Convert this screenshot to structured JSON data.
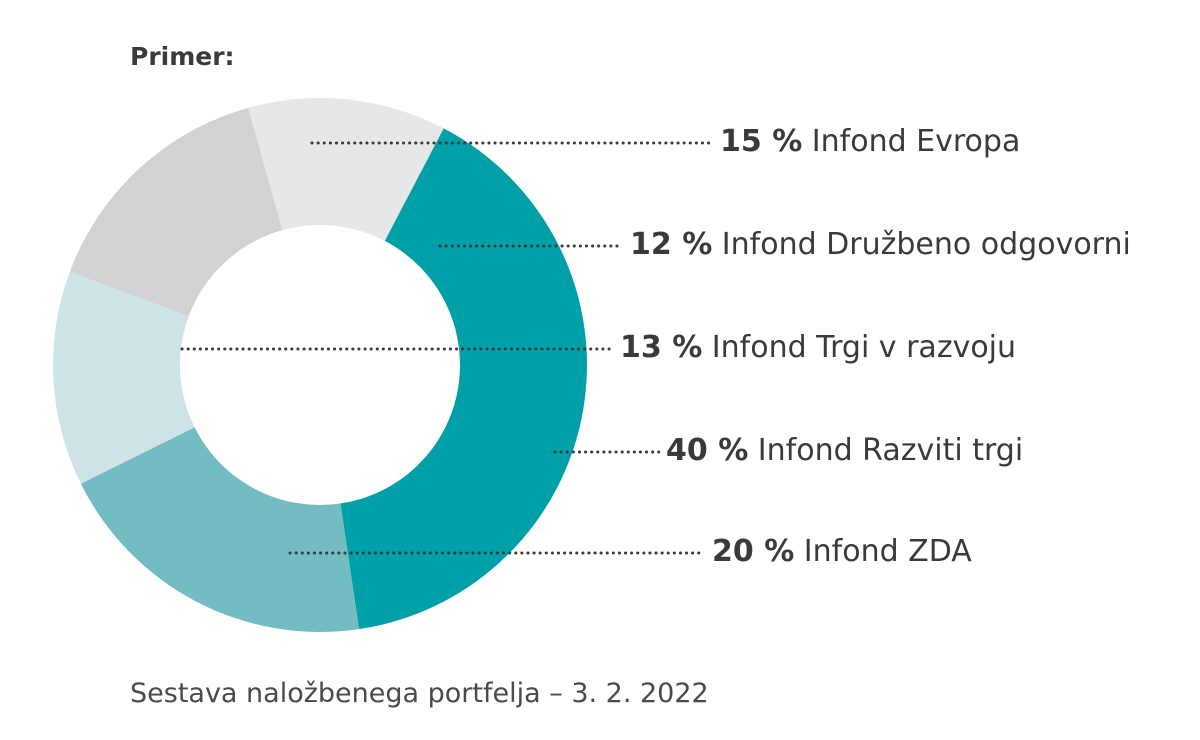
{
  "header": {
    "label": "Primer:"
  },
  "caption": "Sestava naložbenega portfelja – 3. 2. 2022",
  "chart_data": {
    "type": "pie",
    "variant": "donut",
    "series": [
      {
        "name": "Infond Evropa",
        "percent_label": "15 %",
        "value": 15,
        "color": "#d1d2d4"
      },
      {
        "name": "Infond Družbeno odgovorni",
        "percent_label": "12 %",
        "value": 12,
        "color": "#e6e7e9"
      },
      {
        "name": "Infond Trgi v razvoju",
        "percent_label": "13 %",
        "value": 13,
        "color": "#cde4e7"
      },
      {
        "name": "Infond Razviti trgi",
        "percent_label": "40 %",
        "value": 40,
        "color": "#00a0a9"
      },
      {
        "name": "Infond ZDA",
        "percent_label": "20 %",
        "value": 20,
        "color": "#73bcc2"
      }
    ]
  }
}
